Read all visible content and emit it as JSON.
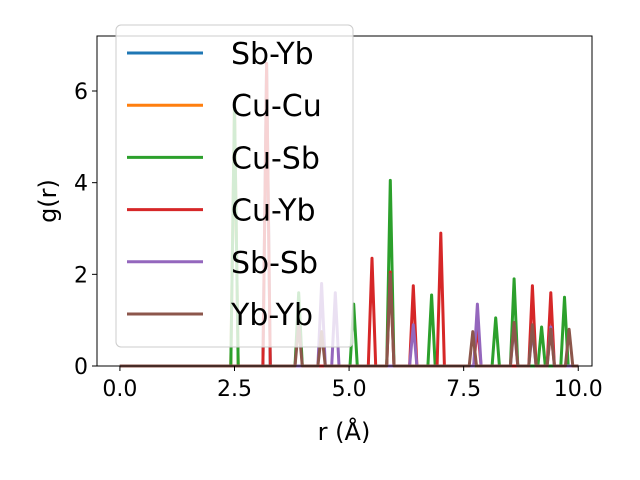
{
  "chart_data": {
    "type": "line",
    "xlabel": "r (Å)",
    "ylabel": "g(r)",
    "xlim": [
      -0.5,
      10.3
    ],
    "ylim": [
      0,
      7.2
    ],
    "xticks": [
      0.0,
      2.5,
      5.0,
      7.5,
      10.0
    ],
    "xtick_labels": [
      "0.0",
      "2.5",
      "5.0",
      "7.5",
      "10.0"
    ],
    "yticks": [
      0,
      2,
      4,
      6
    ],
    "ytick_labels": [
      "0",
      "2",
      "4",
      "6"
    ],
    "grid": false,
    "legend_position": "top-left",
    "series": [
      {
        "name": "Sb-Yb",
        "color": "#1f77b4",
        "peaks": [
          [
            3.2,
            6.6
          ]
        ]
      },
      {
        "name": "Cu-Cu",
        "color": "#ff7f0e",
        "peaks": [
          [
            2.5,
            5.7
          ]
        ]
      },
      {
        "name": "Cu-Sb",
        "color": "#2ca02c",
        "peaks": [
          [
            2.5,
            5.7
          ],
          [
            3.9,
            1.6
          ],
          [
            5.1,
            1.35
          ],
          [
            5.9,
            4.05
          ],
          [
            6.8,
            1.55
          ],
          [
            8.2,
            1.05
          ],
          [
            8.6,
            1.9
          ],
          [
            9.2,
            0.85
          ],
          [
            9.7,
            1.5
          ]
        ]
      },
      {
        "name": "Cu-Yb",
        "color": "#d62728",
        "peaks": [
          [
            3.2,
            6.6
          ],
          [
            5.5,
            2.35
          ],
          [
            5.9,
            2.05
          ],
          [
            6.4,
            1.75
          ],
          [
            7.0,
            2.9
          ],
          [
            7.8,
            0.9
          ],
          [
            9.0,
            1.75
          ],
          [
            9.4,
            1.6
          ]
        ]
      },
      {
        "name": "Sb-Sb",
        "color": "#9467bd",
        "peaks": [
          [
            4.4,
            1.8
          ],
          [
            4.7,
            1.6
          ],
          [
            6.4,
            0.9
          ],
          [
            7.8,
            1.35
          ],
          [
            8.6,
            0.9
          ],
          [
            9.0,
            0.8
          ],
          [
            9.4,
            0.85
          ]
        ]
      },
      {
        "name": "Yb-Yb",
        "color": "#8c564b",
        "peaks": [
          [
            3.9,
            0.9
          ],
          [
            4.4,
            0.75
          ],
          [
            5.9,
            2.0
          ],
          [
            7.7,
            0.75
          ],
          [
            8.6,
            0.95
          ],
          [
            9.0,
            0.9
          ],
          [
            9.4,
            0.8
          ],
          [
            9.8,
            0.8
          ]
        ]
      }
    ]
  }
}
